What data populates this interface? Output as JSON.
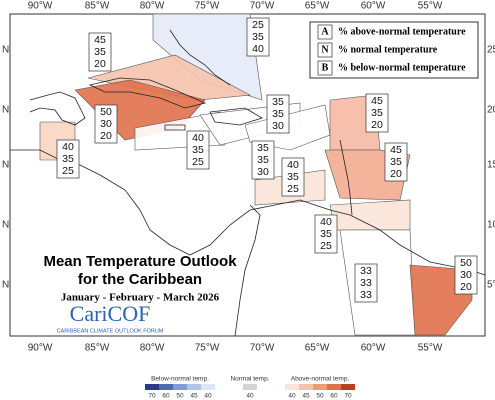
{
  "map": {
    "longitude_labels": [
      "90°W",
      "85°W",
      "80°W",
      "75°W",
      "70°W",
      "65°W",
      "60°W",
      "55°W"
    ],
    "latitude_labels": [
      "25°",
      "20°",
      "15°",
      "10°",
      "5°"
    ],
    "left_latitude_labels": [
      "N",
      "N",
      "N",
      "N",
      "N"
    ],
    "title": {
      "line1": "Mean Temperature Outlook",
      "line2": "for the Caribbean",
      "period": "January - February - March 2026"
    },
    "logo": {
      "name": "CariCOF",
      "subtitle": "CARIBBEAN CLIMATE OUTLOOK FORUM"
    },
    "key": [
      {
        "letter": "A",
        "text": "% above-normal temperature"
      },
      {
        "letter": "N",
        "text": "% normal temperature"
      },
      {
        "letter": "B",
        "text": "% below-normal temperature"
      }
    ],
    "zones": [
      {
        "above": 25,
        "normal": 35,
        "below": 40,
        "color": "#e4eaf7"
      },
      {
        "above": 45,
        "normal": 35,
        "below": 20,
        "color": "#f6c3ad"
      },
      {
        "above": 50,
        "normal": 30,
        "below": 20,
        "color": "#e0714a"
      },
      {
        "above": 40,
        "normal": 35,
        "below": 25,
        "color": "#f9d5c2"
      },
      {
        "above": 40,
        "normal": 35,
        "below": 25,
        "color": "#ffffff"
      },
      {
        "above": 35,
        "normal": 35,
        "below": 30,
        "color": "#ffffff"
      },
      {
        "above": 35,
        "normal": 35,
        "below": 30,
        "color": "#ffffff"
      },
      {
        "above": 45,
        "normal": 35,
        "below": 20,
        "color": "#f6b9a3"
      },
      {
        "above": 45,
        "normal": 35,
        "below": 20,
        "color": "#f3ac90"
      },
      {
        "above": 40,
        "normal": 35,
        "below": 25,
        "color": "#fbe3d7"
      },
      {
        "above": 40,
        "normal": 35,
        "below": 25,
        "color": "#fbe3d7"
      },
      {
        "above": 33,
        "normal": 33,
        "below": 33,
        "color": "#ffffff"
      },
      {
        "above": 50,
        "normal": 30,
        "below": 20,
        "color": "#e0714a"
      }
    ],
    "color_scale": {
      "below": {
        "label": "Below-normal temp.",
        "ticks": [
          70,
          60,
          50,
          45,
          40
        ],
        "colors": [
          "#2b3a8c",
          "#4e6bb8",
          "#7f9dd3",
          "#b1c5e6",
          "#dde6f4"
        ]
      },
      "normal": {
        "label": "Normal temp.",
        "ticks": [
          40
        ],
        "colors": [
          "#d4d4d4"
        ]
      },
      "above": {
        "label": "Above-normal temp.",
        "ticks": [
          40,
          45,
          50,
          60,
          70
        ],
        "colors": [
          "#fbe3d7",
          "#f6c3ad",
          "#ee9b7a",
          "#e0714a",
          "#b8401f"
        ]
      }
    }
  }
}
